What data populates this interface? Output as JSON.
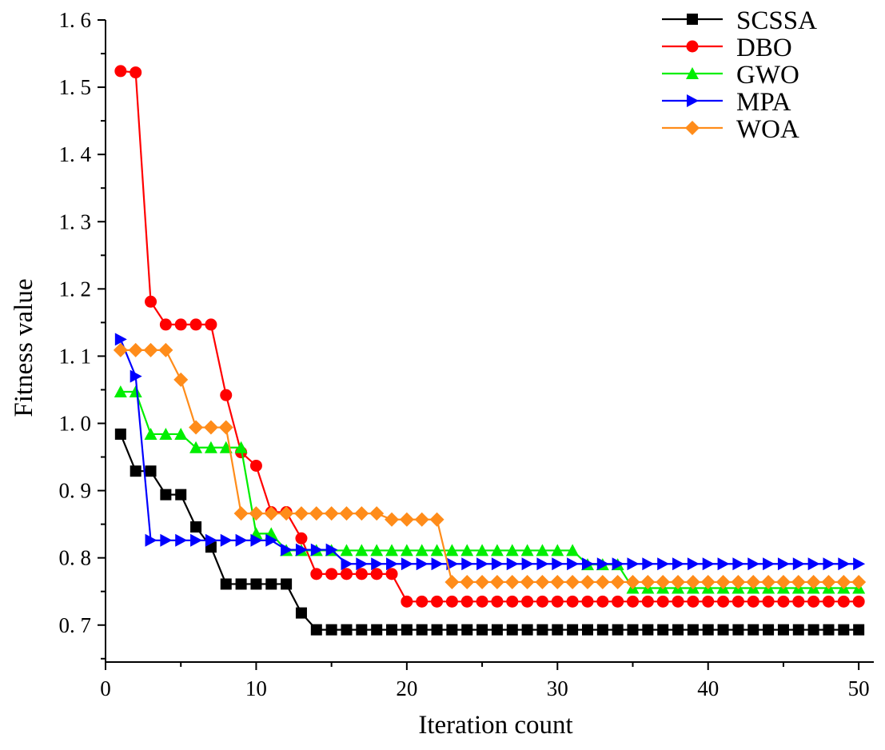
{
  "chart_data": {
    "type": "line",
    "title": "",
    "xlabel": "Iteration count",
    "ylabel": "Fitness value",
    "xlim": [
      0,
      51
    ],
    "ylim": [
      0.645,
      1.6
    ],
    "xticks": [
      0,
      10,
      20,
      30,
      40,
      50
    ],
    "xtick_labels": [
      "0",
      "10",
      "20",
      "30",
      "40",
      "50"
    ],
    "yticks": [
      0.7,
      0.8,
      0.9,
      1.0,
      1.1,
      1.2,
      1.3,
      1.4,
      1.5,
      1.6
    ],
    "ytick_labels": [
      "0. 7",
      "0. 8",
      "0. 9",
      "1. 0",
      "1. 1",
      "1. 2",
      "1. 3",
      "1. 4",
      "1. 5",
      "1. 6"
    ],
    "grid": false,
    "legend_position": "top-right",
    "x": [
      1,
      2,
      3,
      4,
      5,
      6,
      7,
      8,
      9,
      10,
      11,
      12,
      13,
      14,
      15,
      16,
      17,
      18,
      19,
      20,
      21,
      22,
      23,
      24,
      25,
      26,
      27,
      28,
      29,
      30,
      31,
      32,
      33,
      34,
      35,
      36,
      37,
      38,
      39,
      40,
      41,
      42,
      43,
      44,
      45,
      46,
      47,
      48,
      49,
      50
    ],
    "series": [
      {
        "name": "SCSSA",
        "color": "#000000",
        "marker": "square",
        "values": [
          0.984,
          0.929,
          0.929,
          0.894,
          0.894,
          0.846,
          0.816,
          0.761,
          0.761,
          0.761,
          0.761,
          0.761,
          0.718,
          0.693,
          0.693,
          0.693,
          0.693,
          0.693,
          0.693,
          0.693,
          0.693,
          0.693,
          0.693,
          0.693,
          0.693,
          0.693,
          0.693,
          0.693,
          0.693,
          0.693,
          0.693,
          0.693,
          0.693,
          0.693,
          0.693,
          0.693,
          0.693,
          0.693,
          0.693,
          0.693,
          0.693,
          0.693,
          0.693,
          0.693,
          0.693,
          0.693,
          0.693,
          0.693,
          0.693,
          0.693
        ]
      },
      {
        "name": "DBO",
        "color": "#ff0000",
        "marker": "circle",
        "values": [
          1.524,
          1.522,
          1.181,
          1.147,
          1.147,
          1.147,
          1.147,
          1.042,
          0.957,
          0.937,
          0.868,
          0.868,
          0.829,
          0.776,
          0.776,
          0.776,
          0.776,
          0.776,
          0.776,
          0.735,
          0.735,
          0.735,
          0.735,
          0.735,
          0.735,
          0.735,
          0.735,
          0.735,
          0.735,
          0.735,
          0.735,
          0.735,
          0.735,
          0.735,
          0.735,
          0.735,
          0.735,
          0.735,
          0.735,
          0.735,
          0.735,
          0.735,
          0.735,
          0.735,
          0.735,
          0.735,
          0.735,
          0.735,
          0.735,
          0.735
        ]
      },
      {
        "name": "GWO",
        "color": "#00ee00",
        "marker": "triangle-up",
        "values": [
          1.047,
          1.047,
          0.984,
          0.984,
          0.984,
          0.964,
          0.964,
          0.964,
          0.964,
          0.836,
          0.836,
          0.811,
          0.811,
          0.811,
          0.811,
          0.811,
          0.811,
          0.811,
          0.811,
          0.811,
          0.811,
          0.811,
          0.811,
          0.811,
          0.811,
          0.811,
          0.811,
          0.811,
          0.811,
          0.811,
          0.811,
          0.79,
          0.79,
          0.79,
          0.755,
          0.755,
          0.755,
          0.755,
          0.755,
          0.755,
          0.755,
          0.755,
          0.755,
          0.755,
          0.755,
          0.755,
          0.755,
          0.755,
          0.755,
          0.755
        ]
      },
      {
        "name": "MPA",
        "color": "#0000ff",
        "marker": "triangle-right",
        "values": [
          1.125,
          1.07,
          0.826,
          0.826,
          0.826,
          0.826,
          0.826,
          0.826,
          0.826,
          0.826,
          0.826,
          0.812,
          0.812,
          0.812,
          0.812,
          0.791,
          0.791,
          0.791,
          0.791,
          0.791,
          0.791,
          0.791,
          0.791,
          0.791,
          0.791,
          0.791,
          0.791,
          0.791,
          0.791,
          0.791,
          0.791,
          0.791,
          0.791,
          0.791,
          0.791,
          0.791,
          0.791,
          0.791,
          0.791,
          0.791,
          0.791,
          0.791,
          0.791,
          0.791,
          0.791,
          0.791,
          0.791,
          0.791,
          0.791,
          0.791
        ]
      },
      {
        "name": "WOA",
        "color": "#ff8c1a",
        "marker": "diamond",
        "values": [
          1.109,
          1.109,
          1.109,
          1.109,
          1.065,
          0.994,
          0.994,
          0.994,
          0.866,
          0.866,
          0.866,
          0.866,
          0.866,
          0.866,
          0.866,
          0.866,
          0.866,
          0.866,
          0.857,
          0.857,
          0.857,
          0.857,
          0.764,
          0.764,
          0.764,
          0.764,
          0.764,
          0.764,
          0.764,
          0.764,
          0.764,
          0.764,
          0.764,
          0.764,
          0.764,
          0.764,
          0.764,
          0.764,
          0.764,
          0.764,
          0.764,
          0.764,
          0.764,
          0.764,
          0.764,
          0.764,
          0.764,
          0.764,
          0.764,
          0.764
        ]
      }
    ]
  }
}
